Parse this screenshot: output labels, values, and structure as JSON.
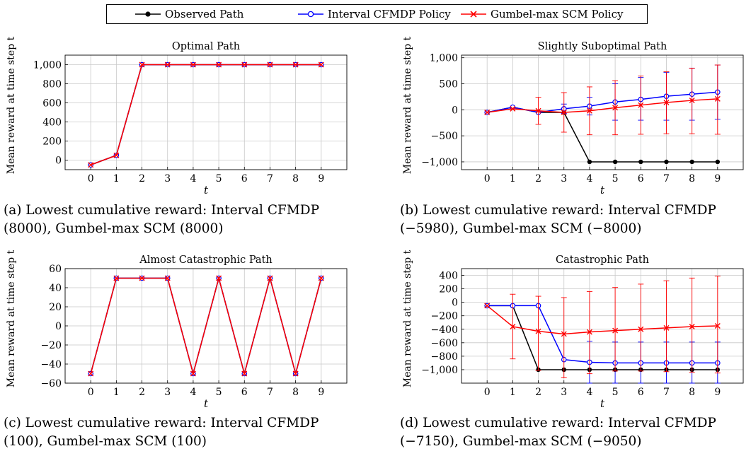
{
  "legend": {
    "observed": "Observed Path",
    "interval": "Interval CFMDP Policy",
    "gumbel": "Gumbel-max SCM Policy"
  },
  "colors": {
    "observed": "#000000",
    "interval": "#0000ff",
    "gumbel": "#ff0000"
  },
  "captions": [
    {
      "line1": "(a) Lowest cumulative reward: Interval CFMDP",
      "line2": "(8000), Gumbel-max SCM (8000)"
    },
    {
      "line1": "(b) Lowest cumulative reward: Interval CFMDP",
      "line2": "(−5980), Gumbel-max SCM (−8000)"
    },
    {
      "line1": "(c) Lowest cumulative reward: Interval CFMDP",
      "line2": "(100), Gumbel-max SCM (100)"
    },
    {
      "line1": "(d) Lowest cumulative reward: Interval CFMDP",
      "line2": "(−7150), Gumbel-max SCM (−9050)"
    }
  ],
  "chart_data": [
    {
      "type": "line",
      "title": "Optimal Path",
      "xlabel": "t",
      "ylabel": "Mean reward at time step t",
      "x": [
        0,
        1,
        2,
        3,
        4,
        5,
        6,
        7,
        8,
        9
      ],
      "xlim": [
        -1,
        10
      ],
      "ylim": [
        -100,
        1100
      ],
      "yticks": [
        0,
        200,
        400,
        600,
        800,
        1000
      ],
      "ytick_labels": [
        "0",
        "200",
        "400",
        "600",
        "800",
        "1,000"
      ],
      "grid": true,
      "series": [
        {
          "key": "observed",
          "values": [
            -50,
            50,
            1000,
            1000,
            1000,
            1000,
            1000,
            1000,
            1000,
            1000
          ]
        },
        {
          "key": "interval",
          "values": [
            -50,
            50,
            1000,
            1000,
            1000,
            1000,
            1000,
            1000,
            1000,
            1000
          ]
        },
        {
          "key": "gumbel",
          "values": [
            -50,
            50,
            1000,
            1000,
            1000,
            1000,
            1000,
            1000,
            1000,
            1000
          ]
        }
      ]
    },
    {
      "type": "line",
      "title": "Slightly Suboptimal Path",
      "xlabel": "t",
      "ylabel": "Mean reward at time step t",
      "x": [
        0,
        1,
        2,
        3,
        4,
        5,
        6,
        7,
        8,
        9
      ],
      "xlim": [
        -1,
        10
      ],
      "ylim": [
        -1150,
        1050
      ],
      "yticks": [
        -1000,
        -500,
        0,
        500,
        1000
      ],
      "ytick_labels": [
        "−1,000",
        "−500",
        "0",
        "500",
        "1,000"
      ],
      "grid": true,
      "series": [
        {
          "key": "observed",
          "values": [
            -50,
            50,
            -50,
            -50,
            -1000,
            -1000,
            -1000,
            -1000,
            -1000,
            -1000
          ]
        },
        {
          "key": "interval",
          "values": [
            -50,
            50,
            -50,
            20,
            70,
            150,
            200,
            260,
            300,
            340
          ],
          "err_lo": [
            0,
            0,
            0,
            90,
            170,
            350,
            400,
            460,
            500,
            520
          ],
          "err_hi": [
            0,
            0,
            0,
            90,
            170,
            350,
            420,
            460,
            500,
            520
          ]
        },
        {
          "key": "gumbel",
          "values": [
            -50,
            20,
            -20,
            -50,
            -20,
            40,
            90,
            140,
            180,
            210
          ],
          "err_lo": [
            0,
            0,
            260,
            380,
            460,
            520,
            560,
            600,
            640,
            680
          ],
          "err_hi": [
            0,
            0,
            260,
            380,
            460,
            520,
            560,
            590,
            620,
            650
          ]
        }
      ]
    },
    {
      "type": "line",
      "title": "Almost Catastrophic Path",
      "xlabel": "t",
      "ylabel": "Mean reward at time step t",
      "x": [
        0,
        1,
        2,
        3,
        4,
        5,
        6,
        7,
        8,
        9
      ],
      "xlim": [
        -1,
        10
      ],
      "ylim": [
        -60,
        60
      ],
      "yticks": [
        -60,
        -40,
        -20,
        0,
        20,
        40,
        60
      ],
      "ytick_labels": [
        "−60",
        "−40",
        "−20",
        "0",
        "20",
        "40",
        "60"
      ],
      "grid": true,
      "series": [
        {
          "key": "observed",
          "values": [
            -50,
            50,
            50,
            50,
            -50,
            50,
            -50,
            50,
            -50,
            50
          ]
        },
        {
          "key": "interval",
          "values": [
            -50,
            50,
            50,
            50,
            -50,
            50,
            -50,
            50,
            -50,
            50
          ]
        },
        {
          "key": "gumbel",
          "values": [
            -50,
            50,
            50,
            50,
            -50,
            50,
            -50,
            50,
            -50,
            50
          ]
        }
      ]
    },
    {
      "type": "line",
      "title": "Catastrophic Path",
      "xlabel": "t",
      "ylabel": "Mean reward at time step t",
      "x": [
        0,
        1,
        2,
        3,
        4,
        5,
        6,
        7,
        8,
        9
      ],
      "xlim": [
        -1,
        10
      ],
      "ylim": [
        -1200,
        500
      ],
      "yticks": [
        -1000,
        -800,
        -600,
        -400,
        -200,
        0,
        200,
        400
      ],
      "ytick_labels": [
        "−1,000",
        "−800",
        "−600",
        "−400",
        "−200",
        "0",
        "200",
        "400"
      ],
      "grid": true,
      "series": [
        {
          "key": "observed",
          "values": [
            -50,
            -50,
            -1000,
            -1000,
            -1000,
            -1000,
            -1000,
            -1000,
            -1000,
            -1000
          ]
        },
        {
          "key": "interval",
          "values": [
            -50,
            -50,
            -50,
            -850,
            -890,
            -900,
            -900,
            -900,
            -900,
            -900
          ],
          "err_lo": [
            0,
            0,
            0,
            0,
            310,
            300,
            300,
            300,
            300,
            300
          ],
          "err_hi": [
            0,
            0,
            0,
            0,
            310,
            310,
            310,
            310,
            310,
            310
          ]
        },
        {
          "key": "gumbel",
          "values": [
            -50,
            -360,
            -430,
            -470,
            -440,
            -420,
            -400,
            -380,
            -360,
            -350
          ],
          "err_lo": [
            0,
            480,
            580,
            650,
            620,
            600,
            620,
            650,
            680,
            700
          ],
          "err_hi": [
            0,
            480,
            520,
            540,
            600,
            640,
            670,
            700,
            720,
            740
          ]
        }
      ]
    }
  ]
}
